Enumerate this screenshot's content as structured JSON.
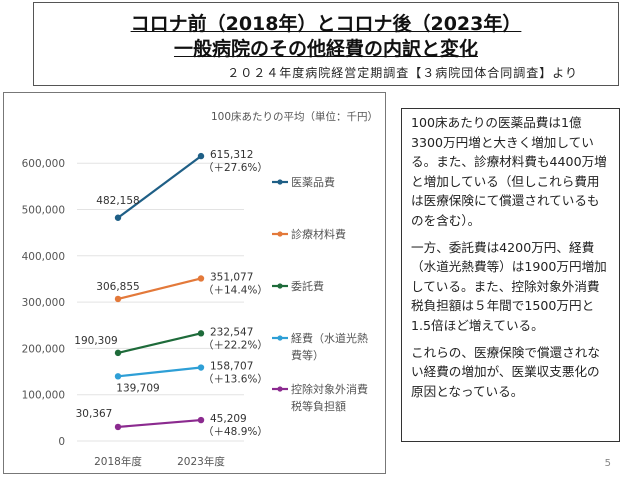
{
  "header": {
    "title_line1": "コロナ前（2018年）とコロナ後（2023年）",
    "title_line2": "一般病院のその他経費の内訳と変化",
    "source": "２０２４年度病院経営定期調査【３病院団体合同調査】より"
  },
  "chart_data": {
    "type": "line",
    "title": "",
    "unit_note": "100床あたりの平均（単位：千円）",
    "categories": [
      "2018年度",
      "2023年度"
    ],
    "xlabel": "",
    "ylabel": "",
    "ylim": [
      0,
      650000
    ],
    "yticks": [
      0,
      100000,
      200000,
      300000,
      400000,
      500000,
      600000
    ],
    "ytick_labels": [
      "0",
      "100,000",
      "200,000",
      "300,000",
      "400,000",
      "500,000",
      "600,000"
    ],
    "grid": true,
    "legend_position": "right",
    "series": [
      {
        "name": "医薬品費",
        "legend_lines": [
          "医薬品費"
        ],
        "color": "#1f5f86",
        "values": [
          482158,
          615312
        ],
        "labels": [
          "482,158",
          "615,312"
        ],
        "change": "（＋27.6%）"
      },
      {
        "name": "診療材料費",
        "legend_lines": [
          "診療材料費"
        ],
        "color": "#e3793a",
        "values": [
          306855,
          351077
        ],
        "labels": [
          "306,855",
          "351,077"
        ],
        "change": "（＋14.4%）"
      },
      {
        "name": "委託費",
        "legend_lines": [
          "委託費"
        ],
        "color": "#1e6b3a",
        "values": [
          190309,
          232547
        ],
        "labels": [
          "190,309",
          "232,547"
        ],
        "change": "（＋22.2%）"
      },
      {
        "name": "経費（水道光熱費等）",
        "legend_lines": [
          "経費（水道光熱",
          "費等）"
        ],
        "color": "#2e9fd6",
        "values": [
          139709,
          158707
        ],
        "labels": [
          "139,709",
          "158,707"
        ],
        "change": "（＋13.6%）"
      },
      {
        "name": "控除対象外消費税等負担額",
        "legend_lines": [
          "控除対象外消費",
          "税等負担額"
        ],
        "color": "#8b2a8f",
        "values": [
          30367,
          45209
        ],
        "labels": [
          "30,367",
          "45,209"
        ],
        "change": "（＋48.9%）"
      }
    ]
  },
  "summary": {
    "paragraphs": [
      "100床あたりの医薬品費は1億3300万円増と大きく増加している。また、診療材料費も4400万増と増加している（但しこれら費用は医療保険にて償還されているものを含む）。",
      "一方、委託費は4200万円、経費（水道光熱費等）は1900万円増加している。また、控除対象外消費税負担額は５年間で1500万円と1.5倍ほど増えている。",
      "これらの、医療保険で償還されない経費の増加が、医業収支悪化の原因となっている。"
    ]
  },
  "page_number": "5"
}
